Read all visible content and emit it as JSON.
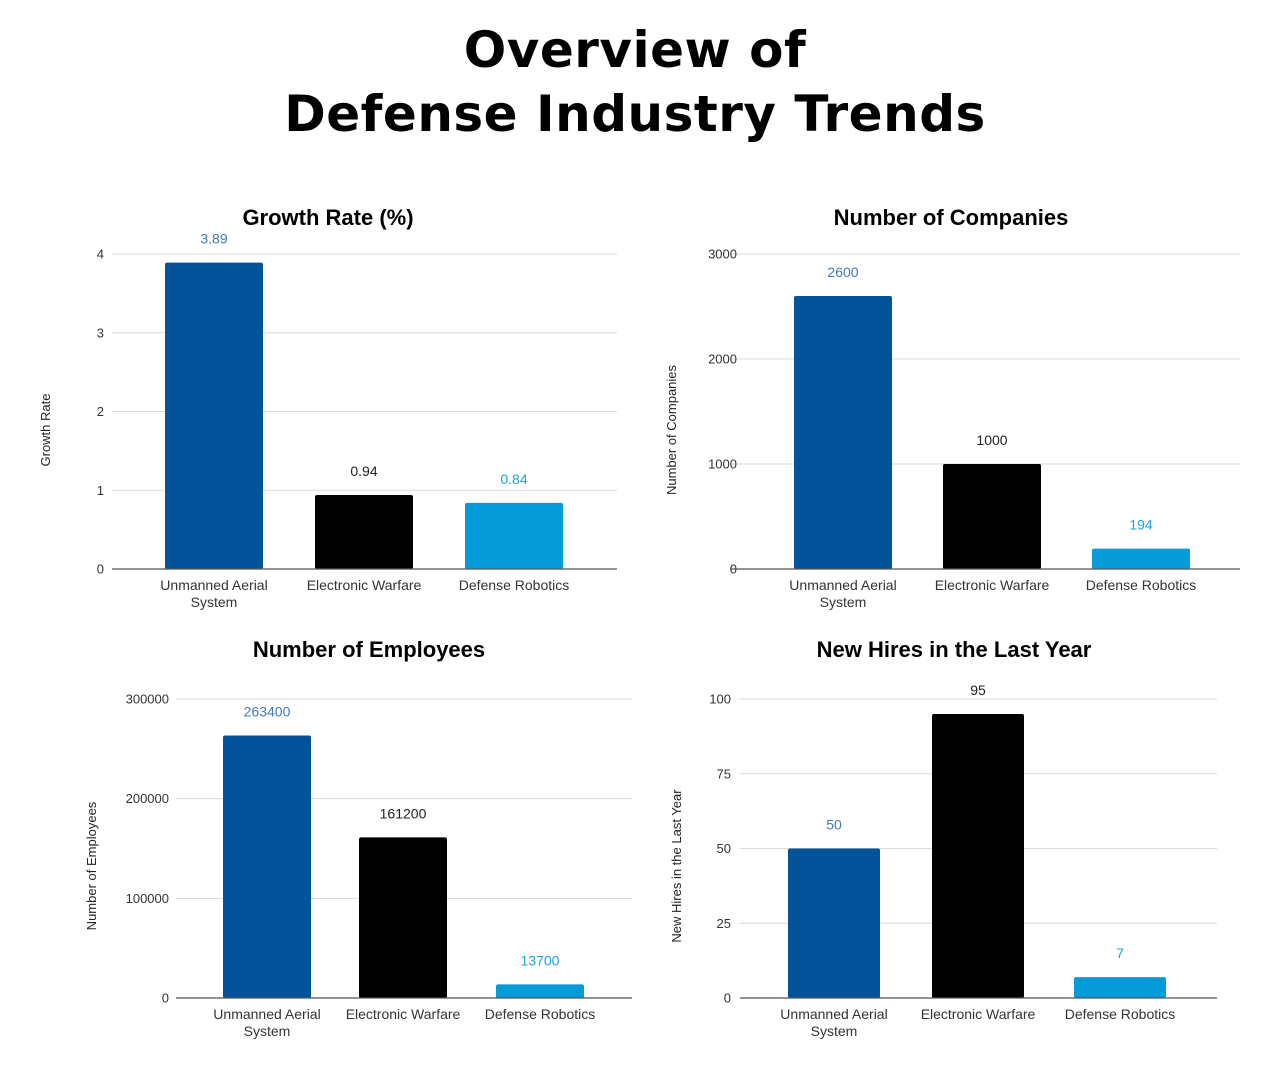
{
  "page": {
    "title_line1": "Overview of",
    "title_line2": "Defense Industry Trends"
  },
  "colors": {
    "unmanned": "#02539a",
    "electronic": "#000000",
    "robotics": "#049bd8",
    "label_unmanned": "#3d7ab8",
    "label_electronic": "#222222",
    "label_robotics": "#1ea3dc",
    "grid": "#d9d9d9",
    "axis": "#555555"
  },
  "chart_data": [
    {
      "type": "bar",
      "title": "Growth Rate (%)",
      "xlabel": "",
      "ylabel": "Growth Rate",
      "categories": [
        "Unmanned Aerial System",
        "Electronic Warfare",
        "Defense Robotics"
      ],
      "category_lines": [
        [
          "Unmanned Aerial",
          "System"
        ],
        [
          "Electronic Warfare"
        ],
        [
          "Defense Robotics"
        ]
      ],
      "values": [
        3.89,
        0.94,
        0.84
      ],
      "data_labels": [
        "3.89",
        "0.94",
        "0.84"
      ],
      "ylim": [
        0,
        4
      ],
      "yticks": [
        0,
        1,
        2,
        3,
        4
      ],
      "ytick_labels": [
        "0",
        "1",
        "2",
        "3",
        "4"
      ],
      "grid": true,
      "legend": "none"
    },
    {
      "type": "bar",
      "title": "Number of Companies",
      "xlabel": "",
      "ylabel": "Number of Companies",
      "categories": [
        "Unmanned Aerial System",
        "Electronic Warfare",
        "Defense Robotics"
      ],
      "category_lines": [
        [
          "Unmanned Aerial",
          "System"
        ],
        [
          "Electronic Warfare"
        ],
        [
          "Defense Robotics"
        ]
      ],
      "values": [
        2600,
        1000,
        194
      ],
      "data_labels": [
        "2600",
        "1000",
        "194"
      ],
      "ylim": [
        0,
        3000
      ],
      "yticks": [
        0,
        1000,
        2000,
        3000
      ],
      "ytick_labels": [
        "0",
        "1000",
        "2000",
        "3000"
      ],
      "grid": true,
      "legend": "none"
    },
    {
      "type": "bar",
      "title": "Number of Employees",
      "xlabel": "",
      "ylabel": "Number of Employees",
      "categories": [
        "Unmanned Aerial System",
        "Electronic Warfare",
        "Defense Robotics"
      ],
      "category_lines": [
        [
          "Unmanned Aerial",
          "System"
        ],
        [
          "Electronic Warfare"
        ],
        [
          "Defense Robotics"
        ]
      ],
      "values": [
        263400,
        161200,
        13700
      ],
      "data_labels": [
        "263400",
        "161200",
        "13700"
      ],
      "ylim": [
        0,
        300000
      ],
      "yticks": [
        0,
        100000,
        200000,
        300000
      ],
      "ytick_labels": [
        "0",
        "100000",
        "200000",
        "300000"
      ],
      "grid": true,
      "legend": "none"
    },
    {
      "type": "bar",
      "title": "New Hires in the Last Year",
      "xlabel": "",
      "ylabel": "New Hires in the Last Year",
      "categories": [
        "Unmanned Aerial System",
        "Electronic Warfare",
        "Defense Robotics"
      ],
      "category_lines": [
        [
          "Unmanned Aerial",
          "System"
        ],
        [
          "Electronic Warfare"
        ],
        [
          "Defense Robotics"
        ]
      ],
      "values": [
        50,
        95,
        7
      ],
      "data_labels": [
        "50",
        "95",
        "7"
      ],
      "ylim": [
        0,
        100
      ],
      "yticks": [
        0,
        25,
        50,
        75,
        100
      ],
      "ytick_labels": [
        "0",
        "25",
        "50",
        "75",
        "100"
      ],
      "grid": true,
      "legend": "none"
    }
  ]
}
